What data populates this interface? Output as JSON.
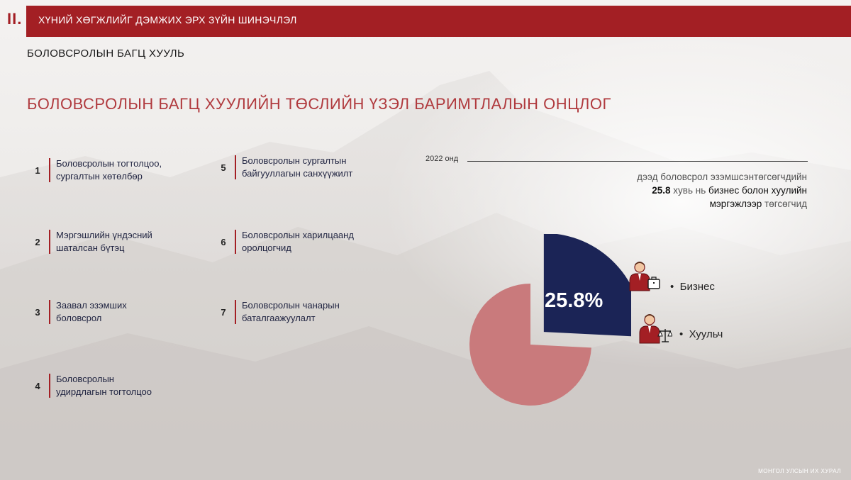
{
  "header": {
    "section_number": "II.",
    "title": "ХҮНИЙ ХӨГЖЛИЙГ ДЭМЖИХ ЭРХ ЗҮЙН ШИНЭЧЛЭЛ"
  },
  "subtitle": "БОЛОВСРОЛЫН БАГЦ ХУУЛЬ",
  "main_heading": "БОЛОВСРОЛЫН БАГЦ ХУУЛИЙН ТӨСЛИЙН ҮЗЭЛ БАРИМТЛАЛЫН ОНЦЛОГ",
  "items": [
    {
      "num": "1",
      "text": "Боловсролын тогтолцоо,\nсургалтын хөтөлбөр"
    },
    {
      "num": "2",
      "text": "Мэргэшлийн үндэсний\nшаталсан бүтэц"
    },
    {
      "num": "3",
      "text": "Заавал эзэмших\nболовсрол"
    },
    {
      "num": "4",
      "text": "Боловсролын\nудирдлагын тогтолцоо"
    },
    {
      "num": "5",
      "text": "Боловсролын сургалтын\nбайгууллагын санхүүжилт"
    },
    {
      "num": "6",
      "text": "Боловсролын харилцаанд\nоролцогчид"
    },
    {
      "num": "7",
      "text": "Боловсролын чанарын\nбаталгаажуулалт"
    }
  ],
  "stat": {
    "year": "2022 онд",
    "line1": "дээд боловсрол эзэмшсэнтөгсөгчдийн",
    "value": "25.8",
    "line2_mid": "хувь нь",
    "line2_end": "бизнес болон хуулийн",
    "line3_dark": "мэргэжлээр",
    "line3_end": "төгсөгчид"
  },
  "chart_data": {
    "type": "pie",
    "slices": [
      {
        "name": "25.8%",
        "value": 25.8,
        "color": "#1b2456"
      },
      {
        "name": "",
        "value": 74.2,
        "color": "#c97a7c"
      }
    ],
    "center_label": "25.8%"
  },
  "legend": [
    {
      "label": "Бизнес",
      "icon": "businessman-icon"
    },
    {
      "label": "Хуульч",
      "icon": "lawyer-icon"
    }
  ],
  "footer": "МОНГОЛ УЛСЫН ИХ ХУРАЛ",
  "colors": {
    "accent": "#a31f24",
    "heading": "#b03a3e",
    "navy": "#1b2456",
    "pink": "#c97a7c"
  }
}
